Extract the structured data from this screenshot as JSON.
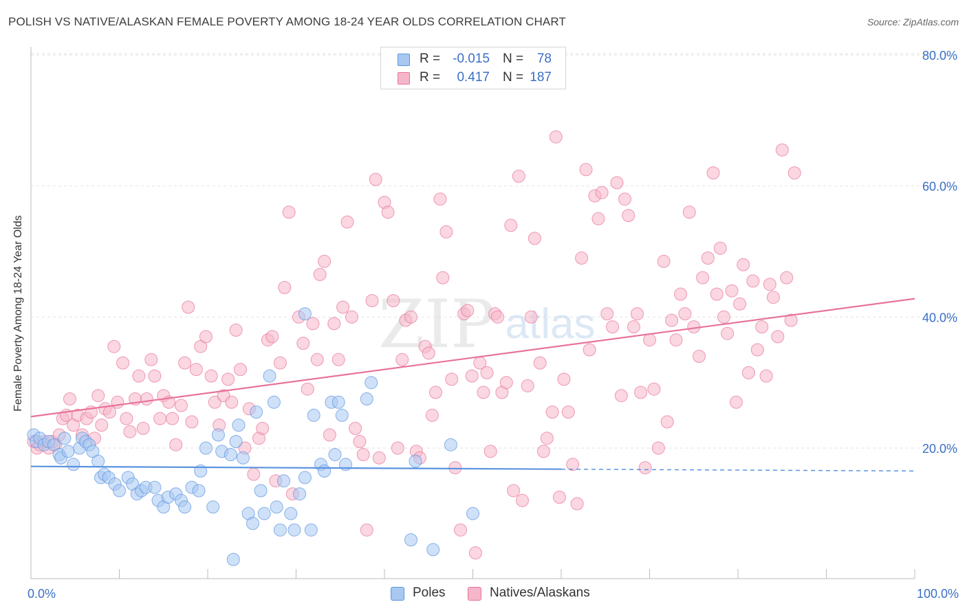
{
  "header": {
    "title": "POLISH VS NATIVE/ALASKAN FEMALE POVERTY AMONG 18-24 YEAR OLDS CORRELATION CHART",
    "source": "Source: ZipAtlas.com"
  },
  "watermark": {
    "zip": "ZIP",
    "atlas": "atlas"
  },
  "legend_top": {
    "rows": [
      {
        "r_label": "R =",
        "r_value": "-0.015",
        "n_label": "N =",
        "n_value": "78",
        "color": "#a8c8f2"
      },
      {
        "r_label": "R =",
        "r_value": "0.417",
        "n_label": "N =",
        "n_value": "187",
        "color": "#f6b6c9"
      }
    ]
  },
  "legend_bottom": {
    "items": [
      {
        "label": "Poles",
        "color": "#a8c8f2"
      },
      {
        "label": "Natives/Alaskans",
        "color": "#f6b6c9"
      }
    ]
  },
  "chart_data": {
    "type": "scatter",
    "title": "POLISH VS NATIVE/ALASKAN FEMALE POVERTY AMONG 18-24 YEAR OLDS CORRELATION CHART",
    "xlabel": "",
    "ylabel": "Female Poverty Among 18-24 Year Olds",
    "xlim": [
      0,
      100
    ],
    "ylim": [
      0,
      85
    ],
    "x_tick_labels": [
      "0.0%",
      "100.0%"
    ],
    "y_ticks": [
      20,
      40,
      60,
      80
    ],
    "y_tick_labels": [
      "20.0%",
      "40.0%",
      "60.0%",
      "80.0%"
    ],
    "grid": true,
    "legend_position": "top-center and bottom",
    "series": [
      {
        "name": "Poles",
        "color": "#5a93e0",
        "fill": "#a8c8f2",
        "trend": {
          "x": [
            0,
            60,
            100
          ],
          "y": [
            17.2,
            16.8,
            16.5
          ],
          "solid_until": 60
        },
        "points": [
          [
            0.3,
            22
          ],
          [
            0.6,
            21
          ],
          [
            1.0,
            21.5
          ],
          [
            1.5,
            20.5
          ],
          [
            2.0,
            21
          ],
          [
            2.6,
            20.5
          ],
          [
            3.2,
            19
          ],
          [
            3.8,
            21.5
          ],
          [
            3.4,
            18.5
          ],
          [
            4.2,
            19.5
          ],
          [
            4.8,
            17.5
          ],
          [
            5.5,
            20
          ],
          [
            5.8,
            21.5
          ],
          [
            6.2,
            21
          ],
          [
            6.6,
            20.5
          ],
          [
            7.0,
            19.5
          ],
          [
            7.6,
            18
          ],
          [
            7.9,
            15.5
          ],
          [
            8.3,
            16
          ],
          [
            8.8,
            15.5
          ],
          [
            9.5,
            14.5
          ],
          [
            10.0,
            13.5
          ],
          [
            11.0,
            15.5
          ],
          [
            11.5,
            14.5
          ],
          [
            12.0,
            13
          ],
          [
            12.5,
            13.5
          ],
          [
            13.0,
            14
          ],
          [
            14.0,
            14
          ],
          [
            14.4,
            12
          ],
          [
            15.0,
            11
          ],
          [
            15.5,
            12.5
          ],
          [
            16.4,
            13
          ],
          [
            17.0,
            12
          ],
          [
            17.4,
            11
          ],
          [
            18.2,
            14
          ],
          [
            19.0,
            13.5
          ],
          [
            19.2,
            16.5
          ],
          [
            19.8,
            20
          ],
          [
            20.6,
            11
          ],
          [
            21.2,
            22
          ],
          [
            21.6,
            19.5
          ],
          [
            22.6,
            19
          ],
          [
            22.9,
            3
          ],
          [
            23.2,
            21
          ],
          [
            23.5,
            23.5
          ],
          [
            24.0,
            18.5
          ],
          [
            24.6,
            10
          ],
          [
            25.1,
            8.5
          ],
          [
            25.5,
            25.5
          ],
          [
            26.0,
            13.5
          ],
          [
            26.4,
            10
          ],
          [
            27.0,
            31
          ],
          [
            27.5,
            27
          ],
          [
            27.8,
            11
          ],
          [
            28.2,
            7.5
          ],
          [
            28.6,
            15
          ],
          [
            29.4,
            10
          ],
          [
            29.8,
            7.5
          ],
          [
            30.4,
            13
          ],
          [
            31.0,
            15.5
          ],
          [
            31.7,
            7.5
          ],
          [
            31.0,
            40.5
          ],
          [
            32.0,
            25
          ],
          [
            32.8,
            17.5
          ],
          [
            33.2,
            16.5
          ],
          [
            34.0,
            27
          ],
          [
            34.4,
            19
          ],
          [
            34.8,
            27
          ],
          [
            35.2,
            25
          ],
          [
            35.6,
            17.5
          ],
          [
            38.0,
            27.5
          ],
          [
            38.5,
            30
          ],
          [
            43.0,
            6
          ],
          [
            43.5,
            18
          ],
          [
            45.5,
            4.5
          ],
          [
            47.5,
            20.5
          ],
          [
            50.0,
            10
          ]
        ]
      },
      {
        "name": "Natives/Alaskans",
        "color": "#e8729a",
        "fill": "#f6b6c9",
        "trend": {
          "x": [
            0,
            100
          ],
          "y": [
            24.8,
            42.8
          ],
          "solid_until": 100
        },
        "points": [
          [
            0.3,
            21
          ],
          [
            0.7,
            20
          ],
          [
            1.0,
            20.5
          ],
          [
            1.5,
            21
          ],
          [
            2.0,
            20
          ],
          [
            2.4,
            21
          ],
          [
            2.8,
            20.5
          ],
          [
            3.2,
            22
          ],
          [
            3.6,
            24.5
          ],
          [
            4.0,
            25
          ],
          [
            4.4,
            27.5
          ],
          [
            4.8,
            23.5
          ],
          [
            5.3,
            25
          ],
          [
            5.8,
            22
          ],
          [
            6.3,
            24.5
          ],
          [
            6.8,
            25.5
          ],
          [
            7.2,
            21.5
          ],
          [
            7.6,
            28
          ],
          [
            8.0,
            23.5
          ],
          [
            8.4,
            26
          ],
          [
            8.9,
            25.5
          ],
          [
            9.4,
            35.5
          ],
          [
            9.8,
            27
          ],
          [
            10.4,
            33
          ],
          [
            10.8,
            24.5
          ],
          [
            11.2,
            22.5
          ],
          [
            11.8,
            27.5
          ],
          [
            12.2,
            31
          ],
          [
            12.7,
            23
          ],
          [
            13.1,
            27.5
          ],
          [
            13.6,
            33.5
          ],
          [
            14.0,
            31
          ],
          [
            14.6,
            24.5
          ],
          [
            15.0,
            28
          ],
          [
            15.6,
            27
          ],
          [
            16.0,
            24.5
          ],
          [
            16.4,
            20.5
          ],
          [
            17.0,
            26.5
          ],
          [
            17.4,
            33
          ],
          [
            17.8,
            41.5
          ],
          [
            18.2,
            24
          ],
          [
            18.7,
            32
          ],
          [
            19.2,
            35.5
          ],
          [
            19.8,
            37
          ],
          [
            20.4,
            31
          ],
          [
            20.8,
            27
          ],
          [
            21.3,
            23.5
          ],
          [
            21.8,
            28
          ],
          [
            22.3,
            30.5
          ],
          [
            22.7,
            27
          ],
          [
            23.2,
            38
          ],
          [
            23.7,
            32
          ],
          [
            24.2,
            20
          ],
          [
            24.7,
            26
          ],
          [
            25.2,
            16
          ],
          [
            25.8,
            21.5
          ],
          [
            26.2,
            23
          ],
          [
            26.8,
            36.5
          ],
          [
            27.3,
            37
          ],
          [
            27.7,
            15
          ],
          [
            28.2,
            33
          ],
          [
            28.7,
            44.5
          ],
          [
            29.2,
            56
          ],
          [
            29.6,
            13
          ],
          [
            30.3,
            40
          ],
          [
            30.8,
            36
          ],
          [
            31.3,
            29
          ],
          [
            31.9,
            39
          ],
          [
            32.4,
            33.5
          ],
          [
            32.7,
            46.5
          ],
          [
            33.2,
            48.5
          ],
          [
            33.8,
            22
          ],
          [
            34.3,
            39
          ],
          [
            34.8,
            33.5
          ],
          [
            35.3,
            41.5
          ],
          [
            35.8,
            54.5
          ],
          [
            36.3,
            40
          ],
          [
            36.7,
            23
          ],
          [
            37.2,
            21
          ],
          [
            37.6,
            19
          ],
          [
            38.0,
            7.5
          ],
          [
            38.6,
            42.5
          ],
          [
            39.0,
            61
          ],
          [
            39.4,
            18.5
          ],
          [
            40.0,
            57.5
          ],
          [
            40.4,
            56
          ],
          [
            41.0,
            42.5
          ],
          [
            41.5,
            20
          ],
          [
            42.0,
            33.5
          ],
          [
            42.4,
            39.5
          ],
          [
            43.0,
            40
          ],
          [
            43.6,
            19.5
          ],
          [
            44.0,
            18.5
          ],
          [
            44.6,
            35.5
          ],
          [
            45.0,
            34.5
          ],
          [
            45.4,
            25
          ],
          [
            45.8,
            28.5
          ],
          [
            46.3,
            58
          ],
          [
            46.6,
            46
          ],
          [
            47.0,
            53
          ],
          [
            47.6,
            30.5
          ],
          [
            48.0,
            17
          ],
          [
            48.6,
            7.5
          ],
          [
            49.0,
            40.5
          ],
          [
            49.4,
            41
          ],
          [
            49.9,
            31
          ],
          [
            50.3,
            4
          ],
          [
            50.8,
            33
          ],
          [
            51.2,
            28.5
          ],
          [
            51.6,
            31.5
          ],
          [
            52.0,
            19.5
          ],
          [
            52.5,
            40.5
          ],
          [
            52.8,
            40
          ],
          [
            53.3,
            28.5
          ],
          [
            53.8,
            30
          ],
          [
            54.3,
            54
          ],
          [
            54.6,
            13.5
          ],
          [
            55.2,
            61.5
          ],
          [
            55.6,
            12
          ],
          [
            56.2,
            29.5
          ],
          [
            56.6,
            40
          ],
          [
            57.0,
            52
          ],
          [
            57.6,
            33
          ],
          [
            58.0,
            19.5
          ],
          [
            58.4,
            21.5
          ],
          [
            59.0,
            25.5
          ],
          [
            59.4,
            67.5
          ],
          [
            59.8,
            12.5
          ],
          [
            60.3,
            30.5
          ],
          [
            60.8,
            25.5
          ],
          [
            61.3,
            17.5
          ],
          [
            61.8,
            11.5
          ],
          [
            62.3,
            49
          ],
          [
            62.8,
            62.5
          ],
          [
            63.2,
            35
          ],
          [
            63.8,
            58.5
          ],
          [
            64.2,
            55
          ],
          [
            64.6,
            59
          ],
          [
            65.2,
            40.5
          ],
          [
            65.8,
            38.5
          ],
          [
            66.3,
            60.5
          ],
          [
            66.8,
            28
          ],
          [
            67.2,
            58
          ],
          [
            67.6,
            55.5
          ],
          [
            68.2,
            38.5
          ],
          [
            68.6,
            40.5
          ],
          [
            69.0,
            28.5
          ],
          [
            69.5,
            17
          ],
          [
            70.0,
            36.5
          ],
          [
            70.5,
            29
          ],
          [
            71.0,
            20
          ],
          [
            71.6,
            48.5
          ],
          [
            72.0,
            24
          ],
          [
            72.5,
            39.5
          ],
          [
            73.0,
            36.5
          ],
          [
            73.5,
            43.5
          ],
          [
            74.0,
            40.5
          ],
          [
            74.5,
            56
          ],
          [
            75.0,
            38.5
          ],
          [
            75.6,
            34
          ],
          [
            76.0,
            46
          ],
          [
            76.6,
            49
          ],
          [
            77.2,
            62
          ],
          [
            77.6,
            43.5
          ],
          [
            78.0,
            50.5
          ],
          [
            78.4,
            40
          ],
          [
            78.8,
            37.5
          ],
          [
            79.3,
            44
          ],
          [
            79.8,
            27
          ],
          [
            80.2,
            42
          ],
          [
            80.6,
            48
          ],
          [
            81.2,
            31.5
          ],
          [
            81.7,
            45.5
          ],
          [
            82.2,
            35
          ],
          [
            82.7,
            38.5
          ],
          [
            83.2,
            31
          ],
          [
            83.6,
            45
          ],
          [
            84.0,
            43
          ],
          [
            84.5,
            37
          ],
          [
            85.0,
            65.5
          ],
          [
            85.5,
            46
          ],
          [
            86.0,
            39.5
          ],
          [
            86.4,
            62
          ]
        ]
      }
    ]
  }
}
